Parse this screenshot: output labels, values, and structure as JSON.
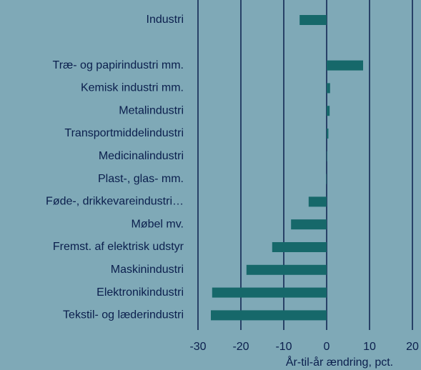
{
  "chart_data": {
    "type": "barh",
    "x_label": "År-til-år ændring, pct.",
    "categories": [
      "Industri",
      null,
      "Træ- og papirindustri mm.",
      "Kemisk industri mm.",
      "Metalindustri",
      "Transportmiddelindustri",
      "Medicinalindustri",
      "Plast-, glas- mm.",
      "Føde-, drikkevareindustri…",
      "Møbel mv.",
      "Fremst. af elektrisk udstyr",
      "Maskinindustri",
      "Elektronikindustri",
      "Tekstil- og læderindustri"
    ],
    "values": [
      -6.3,
      null,
      8.5,
      0.8,
      0.7,
      0.4,
      0.1,
      -0.1,
      -4.2,
      -8.3,
      -12.7,
      -18.7,
      -26.7,
      -27
    ],
    "color": "#16686a",
    "xlim": [
      -30,
      20
    ],
    "xticks": [
      -30,
      -20,
      -10,
      0,
      10,
      20
    ],
    "grid": true
  }
}
